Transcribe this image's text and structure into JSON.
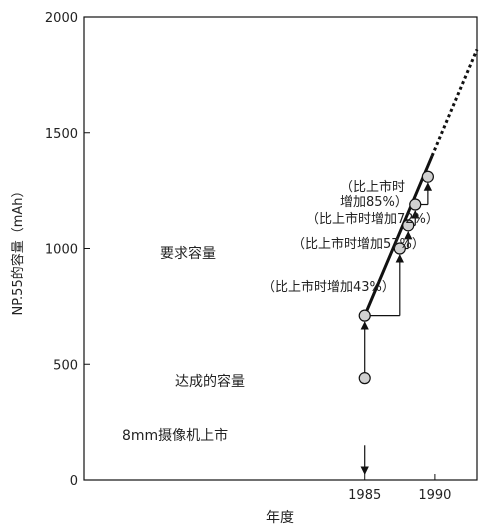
{
  "chart_data": {
    "type": "line",
    "xlabel": "年度",
    "ylabel": "NP.55的容量（mAh）",
    "xlim": [
      1965,
      1993
    ],
    "ylim": [
      0,
      2000
    ],
    "x_ticks": [
      1985,
      1990
    ],
    "y_ticks": [
      0,
      500,
      1000,
      1500,
      2000
    ],
    "grid": false,
    "required_capacity": {
      "label": "要求容量",
      "x": [
        1985,
        1989.8
      ],
      "y": [
        710,
        1400
      ],
      "extrapolated_x": [
        1989.8,
        1993
      ],
      "extrapolated_y": [
        1400,
        1860
      ]
    },
    "achieved_capacity": {
      "label": "达成的容量",
      "points": [
        {
          "x": 1985,
          "y": 440
        },
        {
          "x": 1985,
          "y": 710
        },
        {
          "x": 1987.5,
          "y": 1000
        },
        {
          "x": 1988.1,
          "y": 1100
        },
        {
          "x": 1988.6,
          "y": 1190
        },
        {
          "x": 1989.5,
          "y": 1310
        }
      ]
    },
    "annotations": {
      "increase_43": "（比上市时增加43%）",
      "increase_57": "（比上市时增加57%）",
      "increase_72": "（比上市时增加72%）",
      "increase_85_line1": "（比上市时",
      "increase_85_line2": "增加85%）",
      "launch_event": "8mm摄像机上市"
    }
  }
}
